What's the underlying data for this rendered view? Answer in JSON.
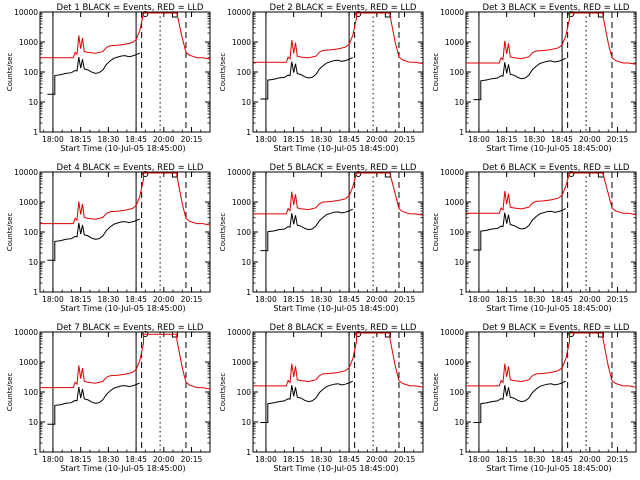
{
  "colors": {
    "events": "#000000",
    "lld": "#e00000",
    "background": "#ffffff"
  },
  "chart_data": [
    {
      "type": "line",
      "title": "Det  1  BLACK = Events, RED = LLD",
      "xlabel": "Start Time (10-Jul-05 18:45:00)",
      "ylabel": "Counts/sec",
      "yscale": "log",
      "ylim": [
        1,
        10000
      ],
      "xlim": [
        -52,
        40
      ],
      "xticks": [
        "18:00",
        "18:15",
        "18:30",
        "18:45",
        "20:00",
        "20:15"
      ],
      "yticks": [
        "1",
        "10",
        "100",
        "1000",
        "10000"
      ],
      "lld_base": 300
    },
    {
      "type": "line",
      "title": "Det  2  BLACK = Events, RED = LLD",
      "xlabel": "Start Time (10-Jul-05 18:45:00)",
      "ylabel": "Counts/sec",
      "yscale": "log",
      "ylim": [
        1,
        10000
      ],
      "xlim": [
        -52,
        40
      ],
      "xticks": [
        "18:00",
        "18:15",
        "18:30",
        "18:45",
        "20:00",
        "20:15"
      ],
      "yticks": [
        "1",
        "10",
        "100",
        "1000",
        "10000"
      ],
      "lld_base": 210
    },
    {
      "type": "line",
      "title": "Det  3  BLACK = Events, RED = LLD",
      "xlabel": "Start Time (10-Jul-05 18:45:00)",
      "ylabel": "Counts/sec",
      "yscale": "log",
      "ylim": [
        1,
        10000
      ],
      "xlim": [
        -52,
        40
      ],
      "xticks": [
        "18:00",
        "18:15",
        "18:30",
        "18:45",
        "20:00",
        "20:15"
      ],
      "yticks": [
        "1",
        "10",
        "100",
        "1000",
        "10000"
      ],
      "lld_base": 200
    },
    {
      "type": "line",
      "title": "Det  4  BLACK = Events, RED = LLD",
      "xlabel": "Start Time (10-Jul-05 18:45:00)",
      "ylabel": "Counts/sec",
      "yscale": "log",
      "ylim": [
        1,
        10000
      ],
      "xlim": [
        -52,
        40
      ],
      "xticks": [
        "18:00",
        "18:15",
        "18:30",
        "18:45",
        "20:00",
        "20:15"
      ],
      "yticks": [
        "1",
        "10",
        "100",
        "1000",
        "10000"
      ],
      "lld_base": 190
    },
    {
      "type": "line",
      "title": "Det  5  BLACK = Events, RED = LLD",
      "xlabel": "Start Time (10-Jul-05 18:45:00)",
      "ylabel": "Counts/sec",
      "yscale": "log",
      "ylim": [
        1,
        10000
      ],
      "xlim": [
        -52,
        40
      ],
      "xticks": [
        "18:00",
        "18:15",
        "18:30",
        "18:45",
        "20:00",
        "20:15"
      ],
      "yticks": [
        "1",
        "10",
        "100",
        "1000",
        "10000"
      ],
      "lld_base": 400
    },
    {
      "type": "line",
      "title": "Det  6  BLACK = Events, RED = LLD",
      "xlabel": "Start Time (10-Jul-05 18:45:00)",
      "ylabel": "Counts/sec",
      "yscale": "log",
      "ylim": [
        1,
        10000
      ],
      "xlim": [
        -52,
        40
      ],
      "xticks": [
        "18:00",
        "18:15",
        "18:30",
        "18:45",
        "20:00",
        "20:15"
      ],
      "yticks": [
        "1",
        "10",
        "100",
        "1000",
        "10000"
      ],
      "lld_base": 420
    },
    {
      "type": "line",
      "title": "Det  7  BLACK = Events, RED = LLD",
      "xlabel": "Start Time (10-Jul-05 18:45:00)",
      "ylabel": "Counts/sec",
      "yscale": "log",
      "ylim": [
        1,
        10000
      ],
      "xlim": [
        -52,
        40
      ],
      "xticks": [
        "18:00",
        "18:15",
        "18:30",
        "18:45",
        "20:00",
        "20:15"
      ],
      "yticks": [
        "1",
        "10",
        "100",
        "1000",
        "10000"
      ],
      "lld_base": 140
    },
    {
      "type": "line",
      "title": "Det  8  BLACK = Events, RED = LLD",
      "xlabel": "Start Time (10-Jul-05 18:45:00)",
      "ylabel": "Counts/sec",
      "yscale": "log",
      "ylim": [
        1,
        10000
      ],
      "xlim": [
        -52,
        40
      ],
      "xticks": [
        "18:00",
        "18:15",
        "18:30",
        "18:45",
        "20:00",
        "20:15"
      ],
      "yticks": [
        "1",
        "10",
        "100",
        "1000",
        "10000"
      ],
      "lld_base": 160
    },
    {
      "type": "line",
      "title": "Det  9  BLACK = Events, RED = LLD",
      "xlabel": "Start Time (10-Jul-05 18:45:00)",
      "ylabel": "Counts/sec",
      "yscale": "log",
      "ylim": [
        1,
        10000
      ],
      "xlim": [
        -52,
        40
      ],
      "xticks": [
        "18:00",
        "18:15",
        "18:30",
        "18:45",
        "20:00",
        "20:15"
      ],
      "yticks": [
        "1",
        "10",
        "100",
        "1000",
        "10000"
      ],
      "lld_base": 160
    }
  ]
}
